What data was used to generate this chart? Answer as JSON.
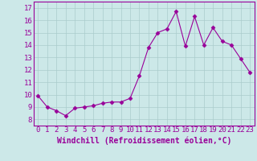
{
  "x": [
    0,
    1,
    2,
    3,
    4,
    5,
    6,
    7,
    8,
    9,
    10,
    11,
    12,
    13,
    14,
    15,
    16,
    17,
    18,
    19,
    20,
    21,
    22,
    23
  ],
  "y": [
    9.9,
    9.0,
    8.7,
    8.3,
    8.9,
    9.0,
    9.1,
    9.3,
    9.4,
    9.4,
    9.7,
    11.5,
    13.8,
    15.0,
    15.3,
    16.7,
    13.9,
    16.3,
    14.0,
    15.4,
    14.3,
    14.0,
    12.9,
    11.8
  ],
  "line_color": "#990099",
  "marker": "D",
  "marker_size": 2.5,
  "bg_color": "#cce8e8",
  "grid_color": "#aacccc",
  "xlabel": "Windchill (Refroidissement éolien,°C)",
  "xlim": [
    -0.5,
    23.5
  ],
  "ylim": [
    7.5,
    17.5
  ],
  "yticks": [
    8,
    9,
    10,
    11,
    12,
    13,
    14,
    15,
    16,
    17
  ],
  "xticks": [
    0,
    1,
    2,
    3,
    4,
    5,
    6,
    7,
    8,
    9,
    10,
    11,
    12,
    13,
    14,
    15,
    16,
    17,
    18,
    19,
    20,
    21,
    22,
    23
  ],
  "tick_color": "#990099",
  "label_color": "#990099",
  "spine_color": "#990099",
  "font_size": 6.5,
  "xlabel_fontsize": 7
}
